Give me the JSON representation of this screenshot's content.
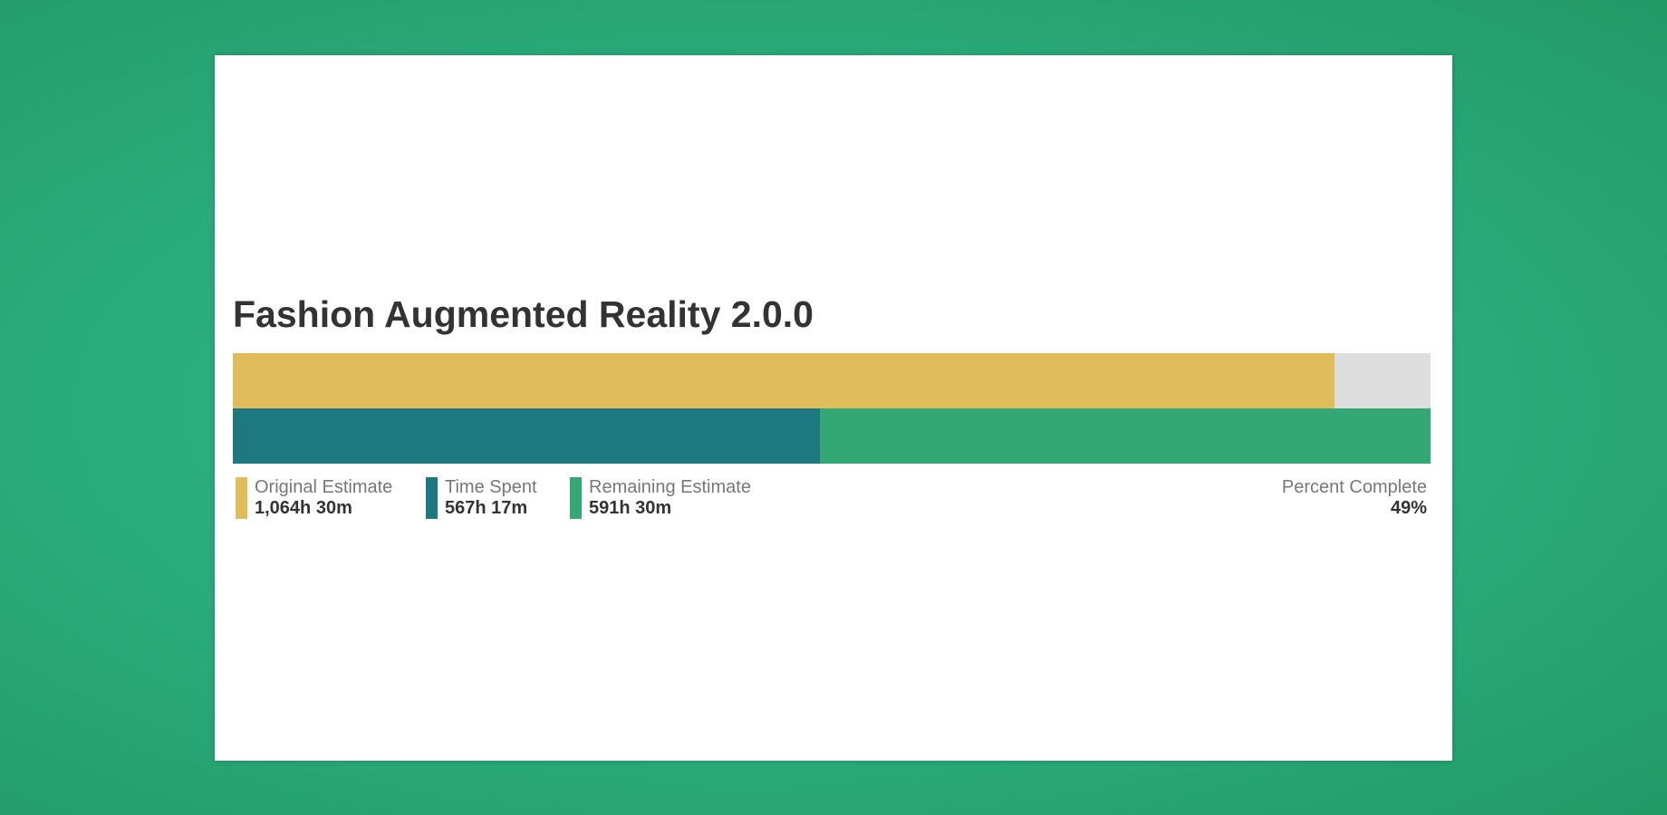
{
  "version": {
    "title": "Fashion Augmented Reality 2.0.0"
  },
  "colors": {
    "original_estimate": "#e0bc5b",
    "time_spent": "#1e7880",
    "remaining_estimate": "#33a874",
    "track": "#dddddd"
  },
  "progress": {
    "original_fraction": 0.92,
    "time_spent_fraction": 0.49
  },
  "legend": {
    "original": {
      "label": "Original Estimate",
      "value": "1,064h 30m"
    },
    "spent": {
      "label": "Time Spent",
      "value": "567h 17m"
    },
    "remaining": {
      "label": "Remaining Estimate",
      "value": "591h 30m"
    }
  },
  "percent_complete": {
    "label": "Percent Complete",
    "value": "49%"
  }
}
